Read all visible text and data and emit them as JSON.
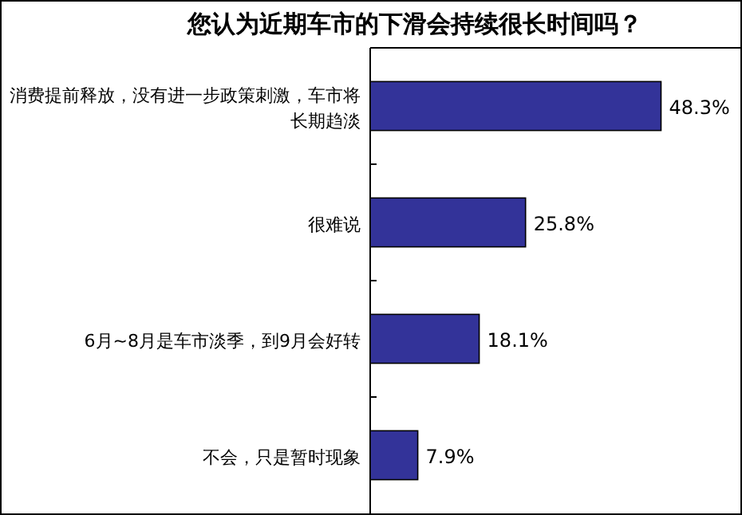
{
  "chart_data": {
    "type": "bar",
    "orientation": "horizontal",
    "title": "您认为近期车市的下滑会持续很长时间吗？",
    "categories": [
      "消费提前释放，没有进一步政策刺激，车市将长期趋淡",
      "很难说",
      "6月~8月是车市淡季，到9月会好转",
      "不会，只是暂时现象"
    ],
    "values": [
      48.3,
      25.8,
      18.1,
      7.9
    ],
    "value_labels": [
      "48.3%",
      "25.8%",
      "18.1%",
      "7.9%"
    ],
    "color": "#333399",
    "tick_labels": "y"
  }
}
